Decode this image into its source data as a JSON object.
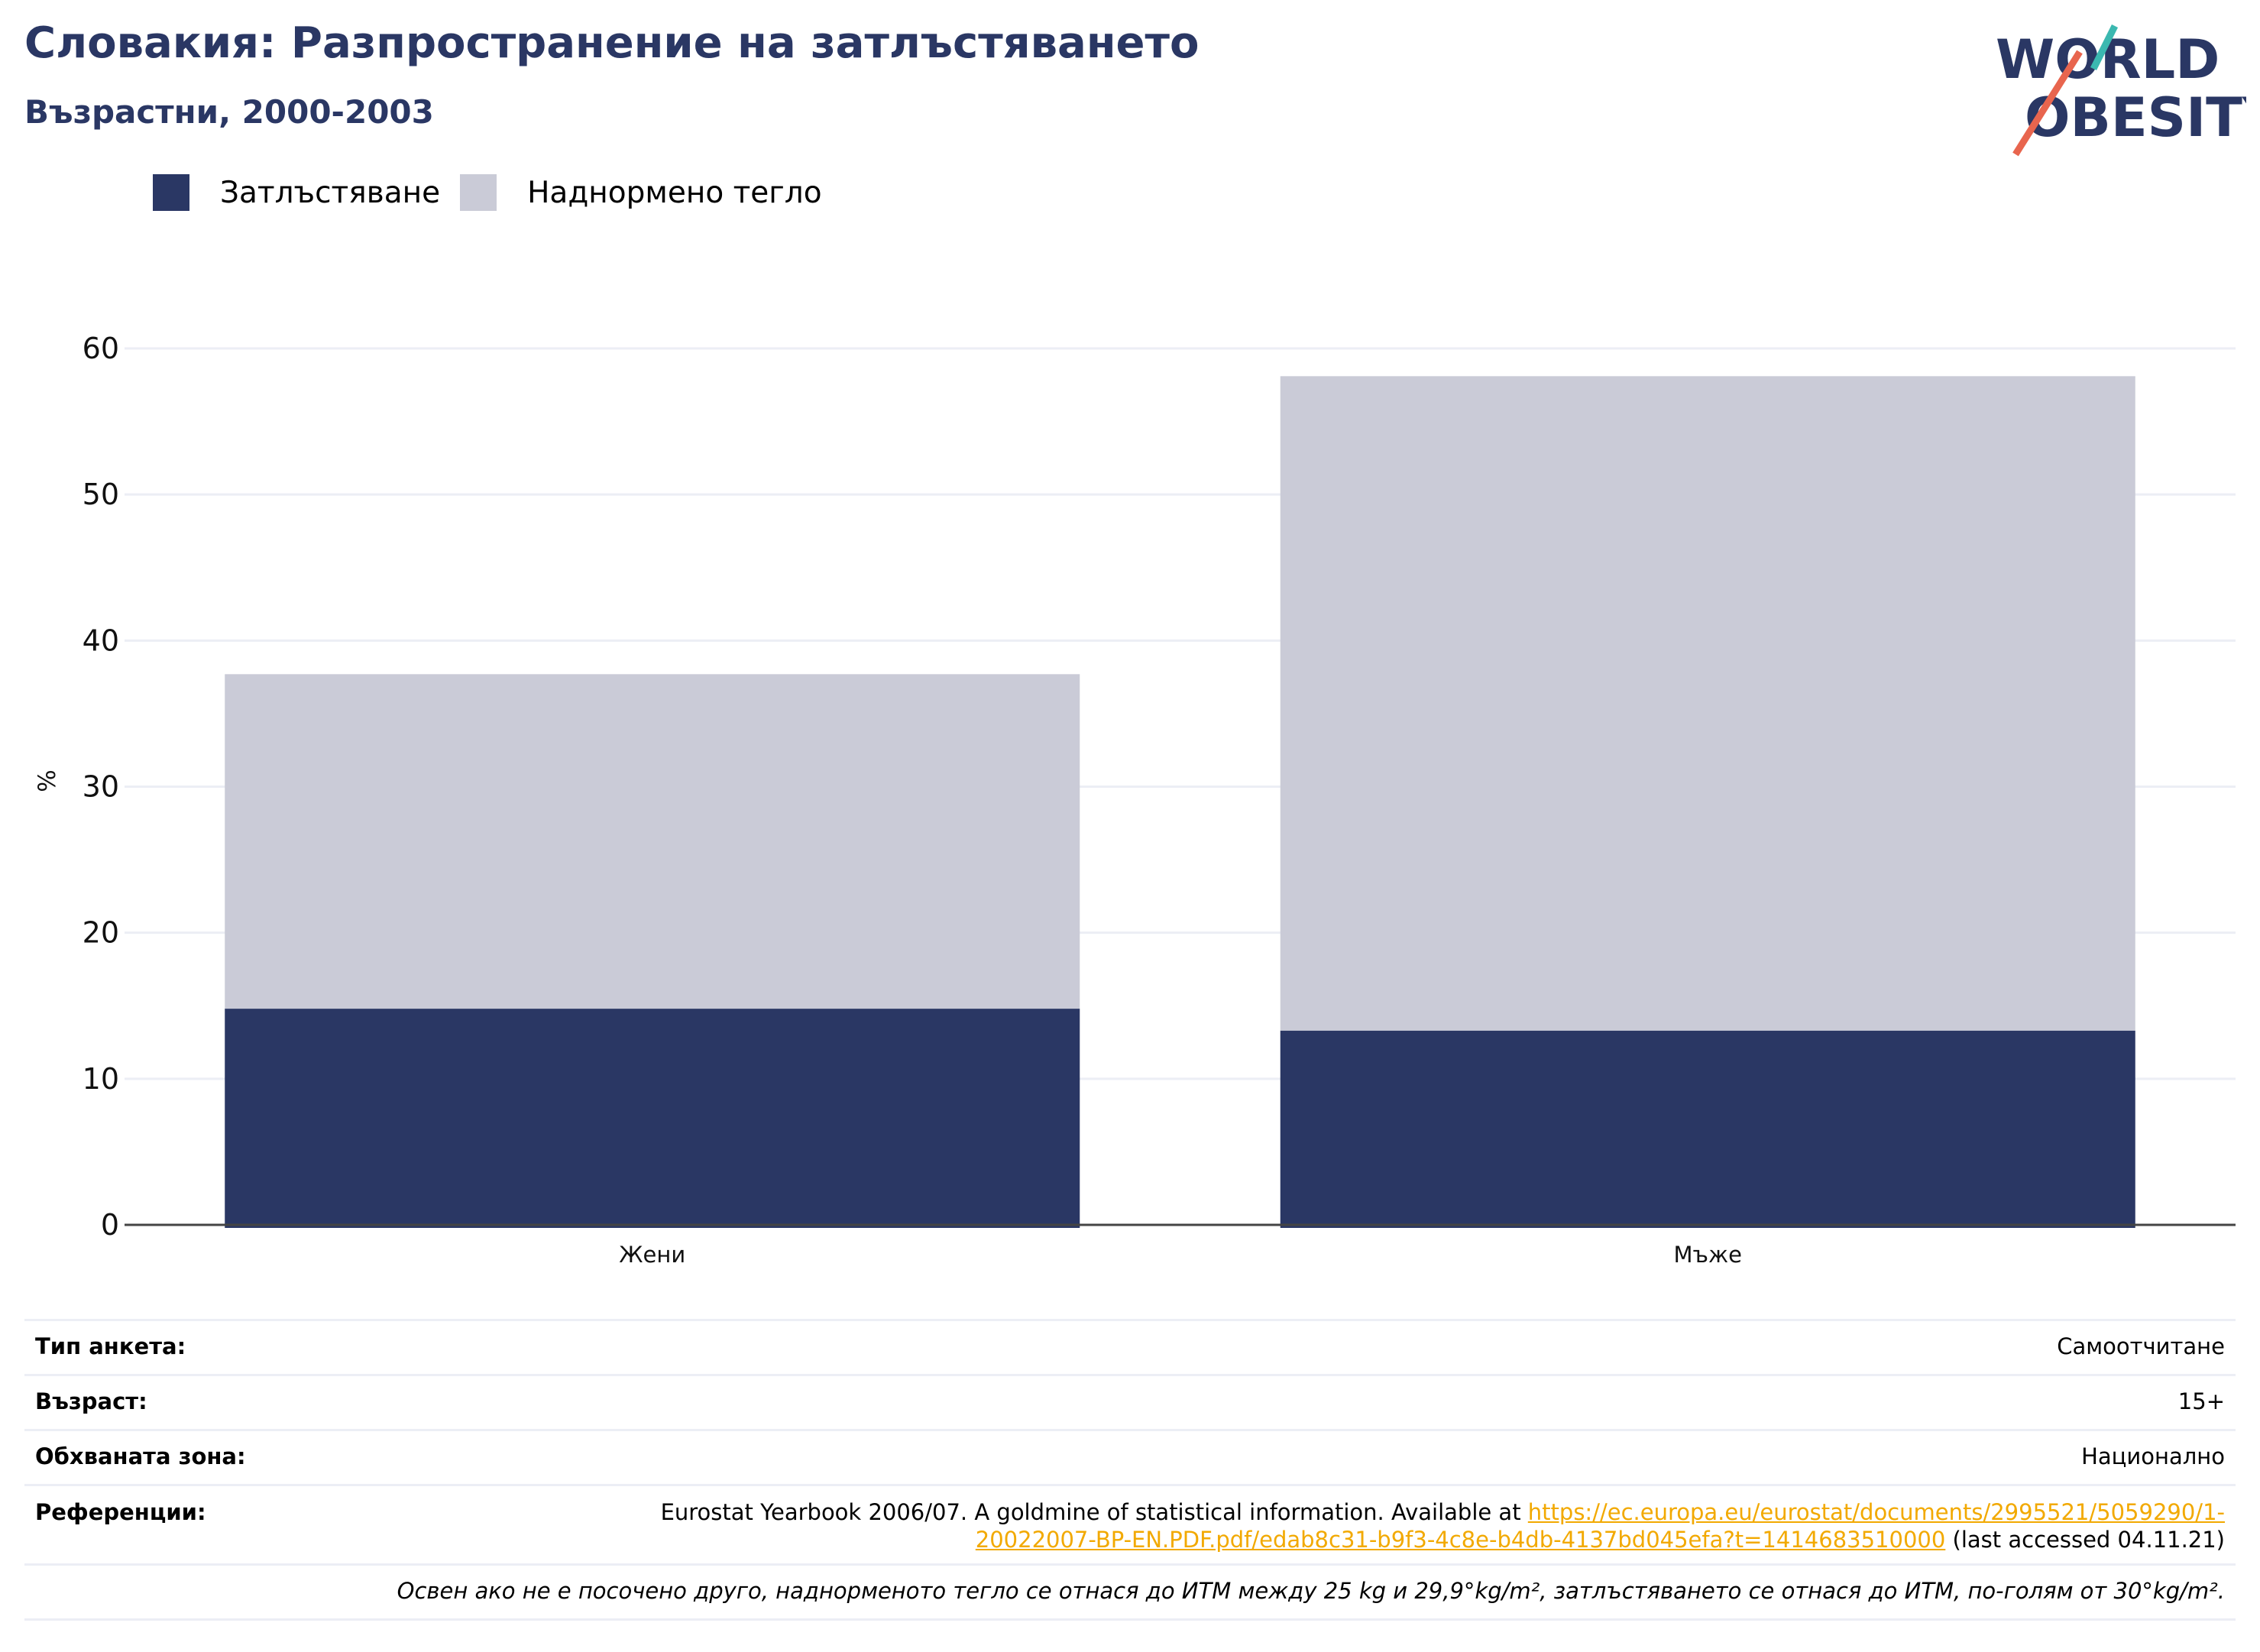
{
  "header": {
    "title": "Словакия: Разпространение на затлъстяването",
    "subtitle": "Възрастни, 2000-2003",
    "logo_line1": "WORLD",
    "logo_line2": "OBESITY"
  },
  "colors": {
    "obesity": "#2a3764",
    "overweight": "#cacbd7",
    "title": "#2a3764",
    "link": "#f2a900",
    "grid": "#eceef5"
  },
  "chart_data": {
    "type": "bar",
    "stacked": true,
    "categories": [
      "Жени",
      "Мъже"
    ],
    "series": [
      {
        "name": "Затлъстяване",
        "values": [
          14.8,
          13.3
        ]
      },
      {
        "name": "Наднормено тегло",
        "values": [
          22.9,
          44.8
        ]
      }
    ],
    "ylabel": "%",
    "xlabel": "",
    "ylim": [
      0,
      60
    ],
    "yticks": [
      0,
      10,
      20,
      30,
      40,
      50,
      60
    ],
    "grid": true,
    "legend": "top-left"
  },
  "info": {
    "survey_type_label": "Тип анкета:",
    "survey_type_value": "Самоотчитане",
    "age_label": "Възраст:",
    "age_value": "15+",
    "area_label": "Обхваната зона:",
    "area_value": "Национално",
    "refs_label": "Референции:",
    "refs_text_before": "Eurostat Yearbook 2006/07. A goldmine of statistical information. Available at ",
    "refs_link_1": "https://ec.europa.eu/eurostat/documents/2995521/5059290/1-",
    "refs_link_2": "20022007-BP-EN.PDF.pdf/edab8c31-b9f3-4c8e-b4db-4137bd045efa?t=1414683510000",
    "refs_text_after": " (last accessed 04.11.21)",
    "note": "Освен ако не е посочено друго, наднорменото тегло се отнася до ИТМ между 25 kg и 29,9°kg/m², затлъстяването се отнася до ИТМ, по-голям от 30°kg/m²."
  }
}
